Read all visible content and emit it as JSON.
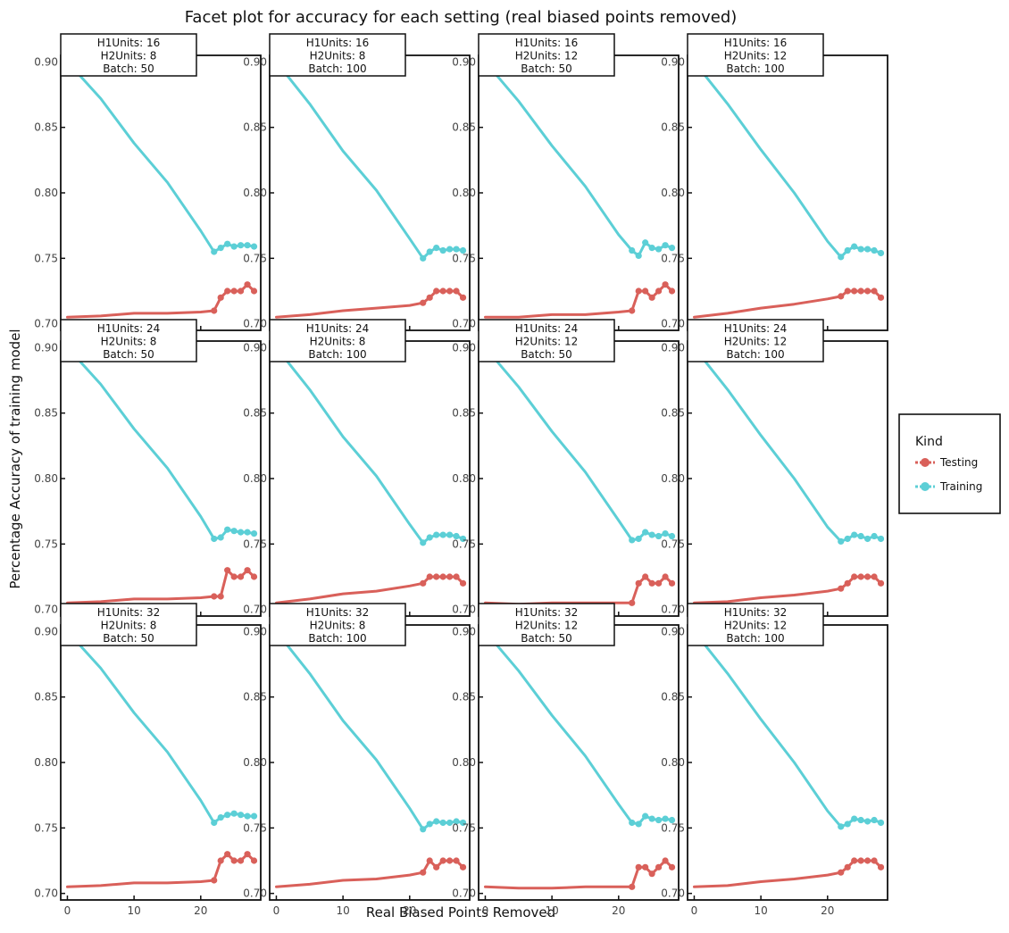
{
  "title": "Facet plot for accuracy for each setting (real biased points removed)",
  "xlabel": "Real Biased Points Removed",
  "ylabel": "Percentage Accuracy of training model",
  "legend": {
    "title": "Kind",
    "items": [
      {
        "label": "Testing",
        "color": "#d9605a"
      },
      {
        "label": "Training",
        "color": "#5ccfd6"
      }
    ]
  },
  "chart_data": {
    "type": "line",
    "facet_grid": {
      "rows": 3,
      "cols": 4
    },
    "xlim": [
      -1,
      29
    ],
    "ylim": [
      0.695,
      0.905
    ],
    "x_ticks": [
      0,
      10,
      20
    ],
    "y_ticks": [
      "0.70",
      "0.75",
      "0.80",
      "0.85",
      "0.90"
    ],
    "training_x": [
      0,
      5,
      10,
      15,
      20,
      22
    ],
    "marker_x": [
      22,
      23,
      24,
      25,
      26,
      27,
      28
    ],
    "testing_x": [
      0,
      5,
      10,
      15,
      20,
      22
    ],
    "series_colors": {
      "testing": "#d9605a",
      "training": "#5ccfd6"
    },
    "facets": [
      {
        "label_lines": [
          "H1Units: 16",
          "H2Units: 8",
          "Batch: 50"
        ],
        "training": [
          0.9,
          0.872,
          0.838,
          0.808,
          0.771,
          0.755
        ],
        "training_tail": [
          0.755,
          0.758,
          0.761,
          0.759,
          0.76,
          0.76,
          0.759
        ],
        "testing": [
          0.705,
          0.706,
          0.708,
          0.708,
          0.709,
          0.71
        ],
        "testing_tail": [
          0.71,
          0.72,
          0.725,
          0.725,
          0.725,
          0.73,
          0.725
        ]
      },
      {
        "label_lines": [
          "H1Units: 16",
          "H2Units: 8",
          "Batch: 100"
        ],
        "training": [
          0.9,
          0.868,
          0.832,
          0.802,
          0.765,
          0.75
        ],
        "training_tail": [
          0.75,
          0.755,
          0.758,
          0.756,
          0.757,
          0.757,
          0.756
        ],
        "testing": [
          0.705,
          0.707,
          0.71,
          0.712,
          0.714,
          0.716
        ],
        "testing_tail": [
          0.716,
          0.72,
          0.725,
          0.725,
          0.725,
          0.725,
          0.72
        ]
      },
      {
        "label_lines": [
          "H1Units: 16",
          "H2Units: 12",
          "Batch: 50"
        ],
        "training": [
          0.9,
          0.87,
          0.836,
          0.805,
          0.768,
          0.756
        ],
        "training_tail": [
          0.756,
          0.752,
          0.762,
          0.758,
          0.757,
          0.76,
          0.758
        ],
        "testing": [
          0.705,
          0.705,
          0.707,
          0.707,
          0.709,
          0.71
        ],
        "testing_tail": [
          0.71,
          0.725,
          0.725,
          0.72,
          0.725,
          0.73,
          0.725
        ]
      },
      {
        "label_lines": [
          "H1Units: 16",
          "H2Units: 12",
          "Batch: 100"
        ],
        "training": [
          0.9,
          0.868,
          0.833,
          0.8,
          0.763,
          0.751
        ],
        "training_tail": [
          0.751,
          0.756,
          0.759,
          0.757,
          0.757,
          0.756,
          0.754
        ],
        "testing": [
          0.705,
          0.708,
          0.712,
          0.715,
          0.719,
          0.721
        ],
        "testing_tail": [
          0.721,
          0.725,
          0.725,
          0.725,
          0.725,
          0.725,
          0.72
        ]
      },
      {
        "label_lines": [
          "H1Units: 24",
          "H2Units: 8",
          "Batch: 50"
        ],
        "training": [
          0.9,
          0.872,
          0.838,
          0.808,
          0.771,
          0.754
        ],
        "training_tail": [
          0.754,
          0.755,
          0.761,
          0.76,
          0.759,
          0.759,
          0.758
        ],
        "testing": [
          0.705,
          0.706,
          0.708,
          0.708,
          0.709,
          0.71
        ],
        "testing_tail": [
          0.71,
          0.71,
          0.73,
          0.725,
          0.725,
          0.73,
          0.725
        ]
      },
      {
        "label_lines": [
          "H1Units: 24",
          "H2Units: 8",
          "Batch: 100"
        ],
        "training": [
          0.9,
          0.868,
          0.832,
          0.802,
          0.765,
          0.751
        ],
        "training_tail": [
          0.751,
          0.755,
          0.757,
          0.757,
          0.757,
          0.756,
          0.754
        ],
        "testing": [
          0.705,
          0.708,
          0.712,
          0.714,
          0.718,
          0.72
        ],
        "testing_tail": [
          0.72,
          0.725,
          0.725,
          0.725,
          0.725,
          0.725,
          0.72
        ]
      },
      {
        "label_lines": [
          "H1Units: 24",
          "H2Units: 12",
          "Batch: 50"
        ],
        "training": [
          0.9,
          0.87,
          0.836,
          0.805,
          0.768,
          0.753
        ],
        "training_tail": [
          0.753,
          0.754,
          0.759,
          0.757,
          0.756,
          0.758,
          0.756
        ],
        "testing": [
          0.705,
          0.704,
          0.705,
          0.705,
          0.705,
          0.705
        ],
        "testing_tail": [
          0.705,
          0.72,
          0.725,
          0.72,
          0.72,
          0.725,
          0.72
        ]
      },
      {
        "label_lines": [
          "H1Units: 24",
          "H2Units: 12",
          "Batch: 100"
        ],
        "training": [
          0.9,
          0.868,
          0.833,
          0.8,
          0.763,
          0.752
        ],
        "training_tail": [
          0.752,
          0.754,
          0.757,
          0.756,
          0.754,
          0.756,
          0.754
        ],
        "testing": [
          0.705,
          0.706,
          0.709,
          0.711,
          0.714,
          0.716
        ],
        "testing_tail": [
          0.716,
          0.72,
          0.725,
          0.725,
          0.725,
          0.725,
          0.72
        ]
      },
      {
        "label_lines": [
          "H1Units: 32",
          "H2Units: 8",
          "Batch: 50"
        ],
        "training": [
          0.9,
          0.872,
          0.838,
          0.808,
          0.771,
          0.754
        ],
        "training_tail": [
          0.754,
          0.758,
          0.76,
          0.761,
          0.76,
          0.759,
          0.759
        ],
        "testing": [
          0.705,
          0.706,
          0.708,
          0.708,
          0.709,
          0.71
        ],
        "testing_tail": [
          0.71,
          0.725,
          0.73,
          0.725,
          0.725,
          0.73,
          0.725
        ]
      },
      {
        "label_lines": [
          "H1Units: 32",
          "H2Units: 8",
          "Batch: 100"
        ],
        "training": [
          0.9,
          0.868,
          0.832,
          0.802,
          0.765,
          0.749
        ],
        "training_tail": [
          0.749,
          0.753,
          0.755,
          0.754,
          0.754,
          0.755,
          0.754
        ],
        "testing": [
          0.705,
          0.707,
          0.71,
          0.711,
          0.714,
          0.716
        ],
        "testing_tail": [
          0.716,
          0.725,
          0.72,
          0.725,
          0.725,
          0.725,
          0.72
        ]
      },
      {
        "label_lines": [
          "H1Units: 32",
          "H2Units: 12",
          "Batch: 50"
        ],
        "training": [
          0.9,
          0.87,
          0.836,
          0.805,
          0.768,
          0.754
        ],
        "training_tail": [
          0.754,
          0.753,
          0.759,
          0.757,
          0.756,
          0.757,
          0.756
        ],
        "testing": [
          0.705,
          0.704,
          0.704,
          0.705,
          0.705,
          0.705
        ],
        "testing_tail": [
          0.705,
          0.72,
          0.72,
          0.715,
          0.72,
          0.725,
          0.72
        ]
      },
      {
        "label_lines": [
          "H1Units: 32",
          "H2Units: 12",
          "Batch: 100"
        ],
        "training": [
          0.9,
          0.868,
          0.833,
          0.8,
          0.763,
          0.751
        ],
        "training_tail": [
          0.751,
          0.753,
          0.757,
          0.756,
          0.755,
          0.756,
          0.754
        ],
        "testing": [
          0.705,
          0.706,
          0.709,
          0.711,
          0.714,
          0.716
        ],
        "testing_tail": [
          0.716,
          0.72,
          0.725,
          0.725,
          0.725,
          0.725,
          0.72
        ]
      }
    ]
  }
}
